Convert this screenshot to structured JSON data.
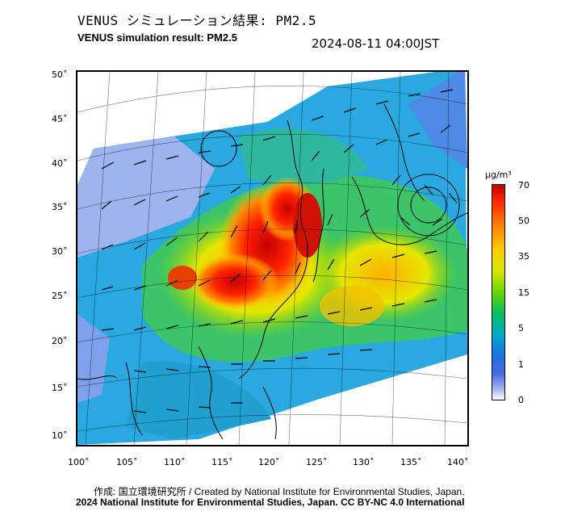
{
  "header": {
    "title_jp": "VENUS シミュレーション結果: PM2.5",
    "title_en": "VENUS simulation result: PM2.5",
    "timestamp": "2024-08-11 04:00JST"
  },
  "map": {
    "lat_labels": [
      "50˚",
      "45˚",
      "40˚",
      "35˚",
      "30˚",
      "25˚",
      "20˚",
      "15˚",
      "10˚"
    ],
    "lon_labels": [
      "100˚",
      "105˚",
      "110˚",
      "115˚",
      "120˚",
      "125˚",
      "130˚",
      "135˚",
      "140˚"
    ]
  },
  "colorbar": {
    "unit": "μg/m³",
    "ticks": [
      "70",
      "50",
      "35",
      "15",
      "5",
      "1",
      "0"
    ],
    "colors": [
      "#c00000",
      "#ff7a00",
      "#ffcc00",
      "#6cd400",
      "#00c060",
      "#00a8d0",
      "#1e70e0",
      "#a6b4f0",
      "#ffffff"
    ]
  },
  "footer": {
    "credit": "作成: 国立環境研究所 / Created by National Institute for Environmental Studies, Japan.",
    "license": "2024 National Institute for Environmental Studies, Japan. CC BY-NC 4.0 International"
  }
}
